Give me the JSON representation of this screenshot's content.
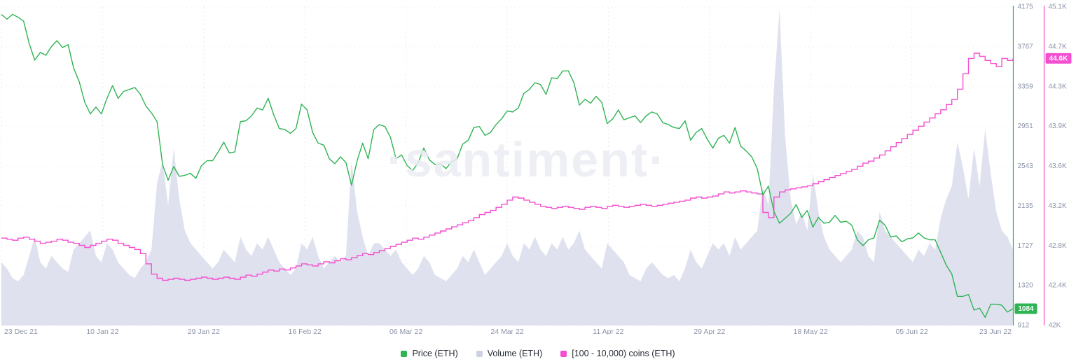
{
  "watermark": "·santiment·",
  "legend": [
    {
      "label": "Price (ETH)",
      "color": "#2fb454"
    },
    {
      "label": "Volume (ETH)",
      "color": "#ccd1e3"
    },
    {
      "label": "[100 - 10,000) coins (ETH)",
      "color": "#f44fd0"
    }
  ],
  "chart_data": {
    "type": "line",
    "title": "",
    "x_ticks": [
      "23 Dec 21",
      "10 Jan 22",
      "29 Jan 22",
      "16 Feb 22",
      "06 Mar 22",
      "24 Mar 22",
      "11 Apr 22",
      "29 Apr 22",
      "18 May 22",
      "05 Jun 22",
      "23 Jun 22"
    ],
    "grid": "dotted",
    "legend_position": "bottom",
    "axes": {
      "price": {
        "side": "right-inner",
        "color": "#2fb454",
        "min": 912,
        "max": 4175,
        "ticks": [
          "912",
          "1320",
          "1727",
          "2135",
          "2543",
          "2951",
          "3359",
          "3767",
          "4175"
        ],
        "last_value_label": "1084"
      },
      "supply": {
        "side": "right-outer",
        "color": "#f44fd0",
        "min": 42.0,
        "max": 45.1,
        "unit": "K",
        "ticks": [
          "42K",
          "42.4K",
          "42.8K",
          "43.2K",
          "43.6K",
          "43.9K",
          "44.3K",
          "44.7K",
          "45.1K"
        ],
        "last_value_label": "44.6K"
      },
      "volume": {
        "side": "hidden",
        "min": 0,
        "max": 100,
        "note": "relative units, axis not shown"
      }
    },
    "series": [
      {
        "name": "Price (ETH)",
        "type": "line",
        "axis": "price",
        "color": "#2fb454",
        "values": [
          4100,
          4050,
          4100,
          4070,
          4030,
          3800,
          3630,
          3710,
          3680,
          3770,
          3830,
          3760,
          3790,
          3550,
          3410,
          3200,
          3080,
          3150,
          3080,
          3240,
          3370,
          3240,
          3310,
          3330,
          3350,
          3280,
          3160,
          3090,
          3000,
          2560,
          2400,
          2540,
          2440,
          2450,
          2470,
          2420,
          2550,
          2600,
          2600,
          2690,
          2790,
          2680,
          2690,
          3000,
          3010,
          3060,
          3140,
          3120,
          3240,
          3070,
          2930,
          2920,
          2880,
          2930,
          3180,
          3120,
          2890,
          2780,
          2760,
          2620,
          2570,
          2640,
          2580,
          2350,
          2600,
          2780,
          2620,
          2920,
          2970,
          2950,
          2840,
          2620,
          2660,
          2550,
          2500,
          2580,
          2730,
          2610,
          2560,
          2570,
          2520,
          2590,
          2620,
          2770,
          2810,
          2940,
          2950,
          2860,
          2890,
          2970,
          3030,
          3110,
          3100,
          3140,
          3290,
          3330,
          3400,
          3380,
          3280,
          3450,
          3440,
          3520,
          3520,
          3400,
          3170,
          3230,
          3190,
          3260,
          3200,
          2980,
          3030,
          3120,
          3020,
          3040,
          3060,
          2990,
          3060,
          3100,
          3080,
          2990,
          2970,
          2940,
          2930,
          3010,
          2810,
          2890,
          2930,
          2820,
          2730,
          2830,
          2860,
          2780,
          2940,
          2750,
          2700,
          2640,
          2520,
          2250,
          2340,
          2080,
          1960,
          2010,
          2060,
          2150,
          2020,
          2090,
          1920,
          2020,
          1960,
          1970,
          2040,
          1970,
          1980,
          1940,
          1790,
          1730,
          1790,
          1810,
          1990,
          1940,
          1820,
          1830,
          1770,
          1800,
          1810,
          1860,
          1810,
          1790,
          1790,
          1660,
          1530,
          1440,
          1210,
          1210,
          1230,
          1070,
          1090,
          995,
          1130,
          1130,
          1120,
          1050,
          1084
        ]
      },
      {
        "name": "Volume (ETH)",
        "type": "area",
        "axis": "volume",
        "color": "#dcdfec",
        "values": [
          20,
          18,
          15,
          14,
          16,
          22,
          28,
          20,
          18,
          22,
          20,
          18,
          17,
          24,
          26,
          28,
          30,
          22,
          20,
          26,
          24,
          20,
          18,
          16,
          15,
          18,
          20,
          24,
          45,
          52,
          38,
          56,
          40,
          30,
          26,
          24,
          22,
          20,
          18,
          20,
          24,
          22,
          20,
          28,
          24,
          22,
          26,
          24,
          28,
          24,
          20,
          18,
          16,
          18,
          26,
          24,
          28,
          22,
          18,
          20,
          22,
          20,
          22,
          52,
          36,
          28,
          22,
          26,
          26,
          24,
          22,
          24,
          20,
          18,
          16,
          18,
          22,
          20,
          16,
          15,
          14,
          16,
          18,
          22,
          20,
          24,
          20,
          16,
          18,
          20,
          22,
          26,
          22,
          20,
          26,
          24,
          28,
          24,
          22,
          26,
          24,
          28,
          24,
          26,
          30,
          24,
          22,
          20,
          18,
          26,
          24,
          22,
          20,
          16,
          15,
          14,
          18,
          20,
          18,
          16,
          15,
          16,
          14,
          18,
          24,
          20,
          18,
          22,
          26,
          24,
          26,
          22,
          28,
          24,
          26,
          28,
          30,
          44,
          38,
          75,
          100,
          60,
          40,
          32,
          36,
          30,
          48,
          36,
          28,
          24,
          22,
          20,
          22,
          24,
          30,
          28,
          22,
          20,
          36,
          30,
          28,
          26,
          24,
          22,
          20,
          24,
          22,
          26,
          24,
          34,
          40,
          44,
          58,
          50,
          40,
          56,
          44,
          62,
          48,
          36,
          30,
          28,
          24
        ]
      },
      {
        "name": "[100 - 10,000) coins (ETH)",
        "type": "step-line",
        "axis": "supply",
        "color": "#f44fd0",
        "values": [
          42.85,
          42.84,
          42.83,
          42.85,
          42.86,
          42.84,
          42.82,
          42.8,
          42.81,
          42.82,
          42.84,
          42.83,
          42.81,
          42.8,
          42.78,
          42.76,
          42.78,
          42.8,
          42.82,
          42.84,
          42.83,
          42.8,
          42.78,
          42.76,
          42.74,
          42.7,
          42.6,
          42.5,
          42.46,
          42.44,
          42.45,
          42.46,
          42.45,
          42.44,
          42.45,
          42.46,
          42.47,
          42.46,
          42.45,
          42.46,
          42.47,
          42.46,
          42.45,
          42.47,
          42.49,
          42.48,
          42.5,
          42.52,
          42.54,
          42.53,
          42.55,
          42.54,
          42.56,
          42.58,
          42.6,
          42.59,
          42.58,
          42.6,
          42.62,
          42.61,
          42.63,
          42.65,
          42.64,
          42.66,
          42.68,
          42.7,
          42.69,
          42.71,
          42.73,
          42.75,
          42.77,
          42.79,
          42.81,
          42.83,
          42.85,
          42.84,
          42.86,
          42.88,
          42.9,
          42.92,
          42.94,
          42.96,
          42.98,
          43.0,
          43.02,
          43.05,
          43.08,
          43.1,
          43.12,
          43.15,
          43.18,
          43.22,
          43.25,
          43.24,
          43.22,
          43.2,
          43.18,
          43.16,
          43.15,
          43.14,
          43.15,
          43.16,
          43.15,
          43.14,
          43.13,
          43.15,
          43.16,
          43.15,
          43.14,
          43.16,
          43.17,
          43.16,
          43.15,
          43.16,
          43.17,
          43.18,
          43.17,
          43.16,
          43.17,
          43.18,
          43.19,
          43.2,
          43.21,
          43.22,
          43.24,
          43.25,
          43.24,
          43.25,
          43.26,
          43.28,
          43.3,
          43.29,
          43.3,
          43.31,
          43.3,
          43.29,
          43.28,
          43.1,
          43.05,
          43.25,
          43.3,
          43.32,
          43.33,
          43.34,
          43.35,
          43.36,
          43.38,
          43.4,
          43.42,
          43.44,
          43.46,
          43.48,
          43.5,
          43.52,
          43.55,
          43.58,
          43.6,
          43.63,
          43.66,
          43.7,
          43.74,
          43.78,
          43.82,
          43.86,
          43.9,
          43.94,
          43.98,
          44.02,
          44.06,
          44.1,
          44.15,
          44.2,
          44.3,
          44.45,
          44.6,
          44.65,
          44.62,
          44.58,
          44.55,
          44.52,
          44.6,
          44.58,
          44.6
        ]
      }
    ]
  }
}
